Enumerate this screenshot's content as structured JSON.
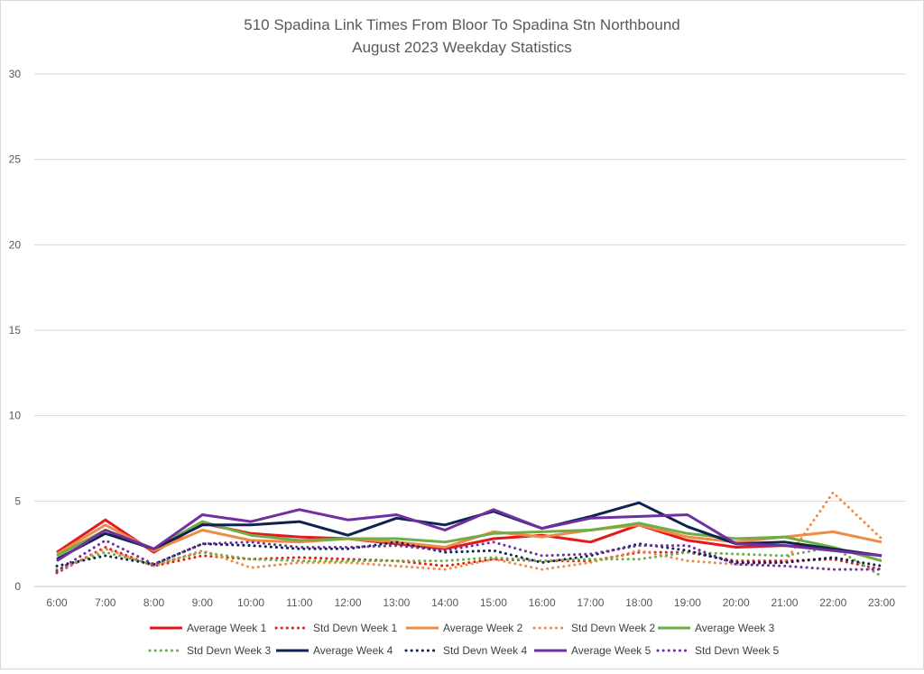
{
  "chart_data": {
    "type": "line",
    "title": "510 Spadina Link Times From Bloor To Spadina Stn Northbound",
    "subtitle": "August 2023 Weekday Statistics",
    "xlabel": "",
    "ylabel": "",
    "ylim": [
      0,
      30
    ],
    "yticks": [
      0,
      5,
      10,
      15,
      20,
      25,
      30
    ],
    "grid": true,
    "legend_position": "bottom",
    "categories": [
      "6:00",
      "7:00",
      "8:00",
      "9:00",
      "10:00",
      "11:00",
      "12:00",
      "13:00",
      "14:00",
      "15:00",
      "16:00",
      "17:00",
      "18:00",
      "19:00",
      "20:00",
      "21:00",
      "22:00",
      "23:00"
    ],
    "series": [
      {
        "name": "Average Week 1",
        "style": "solid",
        "color": "#e31a1c",
        "values": [
          2.0,
          3.9,
          2.0,
          3.7,
          3.1,
          2.9,
          2.8,
          2.5,
          2.2,
          2.8,
          3.0,
          2.6,
          3.6,
          2.7,
          2.3,
          2.4,
          2.2,
          1.8
        ]
      },
      {
        "name": "Std Devn Week 1",
        "style": "dotted",
        "color": "#e31a1c",
        "values": [
          0.8,
          2.3,
          1.2,
          1.8,
          1.6,
          1.7,
          1.6,
          1.5,
          1.2,
          1.6,
          1.5,
          1.5,
          2.0,
          2.0,
          1.5,
          1.5,
          1.6,
          1.0
        ]
      },
      {
        "name": "Average Week 2",
        "style": "solid",
        "color": "#ed8c47",
        "values": [
          1.9,
          3.6,
          2.1,
          3.3,
          2.7,
          2.6,
          2.8,
          2.6,
          2.3,
          3.2,
          2.9,
          3.3,
          3.6,
          2.9,
          2.6,
          2.9,
          3.2,
          2.6
        ]
      },
      {
        "name": "Std Devn Week 2",
        "style": "dotted",
        "color": "#ed8c47",
        "values": [
          0.9,
          2.2,
          1.2,
          2.1,
          1.1,
          1.4,
          1.4,
          1.2,
          1.0,
          1.6,
          1.0,
          1.4,
          2.1,
          1.5,
          1.3,
          1.4,
          5.5,
          2.8
        ]
      },
      {
        "name": "Average Week 3",
        "style": "solid",
        "color": "#70ad47",
        "values": [
          1.8,
          3.3,
          2.2,
          3.8,
          3.0,
          2.7,
          2.8,
          2.8,
          2.6,
          3.1,
          3.2,
          3.3,
          3.7,
          3.1,
          2.8,
          2.9,
          2.3,
          1.5
        ]
      },
      {
        "name": "Std Devn Week 3",
        "style": "dotted",
        "color": "#70ad47",
        "values": [
          1.0,
          2.0,
          1.3,
          2.0,
          1.6,
          1.5,
          1.5,
          1.5,
          1.5,
          1.7,
          1.5,
          1.6,
          1.6,
          2.0,
          1.9,
          1.8,
          2.3,
          0.6
        ]
      },
      {
        "name": "Average Week 4",
        "style": "solid",
        "color": "#0f2350",
        "values": [
          1.6,
          3.1,
          2.2,
          3.6,
          3.6,
          3.8,
          3.0,
          4.0,
          3.6,
          4.4,
          3.4,
          4.1,
          4.9,
          3.5,
          2.5,
          2.6,
          2.2,
          1.8
        ]
      },
      {
        "name": "Std Devn Week 4",
        "style": "dotted",
        "color": "#0f2350",
        "values": [
          1.2,
          1.8,
          1.3,
          2.5,
          2.4,
          2.2,
          2.2,
          2.6,
          2.0,
          2.1,
          1.4,
          1.8,
          2.5,
          2.1,
          1.4,
          1.4,
          1.7,
          1.2
        ]
      },
      {
        "name": "Average Week 5",
        "style": "solid",
        "color": "#7030a0",
        "values": [
          1.5,
          3.3,
          2.2,
          4.2,
          3.8,
          4.5,
          3.9,
          4.2,
          3.3,
          4.5,
          3.4,
          4.0,
          4.1,
          4.2,
          2.5,
          2.4,
          2.1,
          1.8
        ]
      },
      {
        "name": "Std Devn Week 5",
        "style": "dotted",
        "color": "#7030a0",
        "values": [
          0.9,
          2.7,
          1.3,
          2.5,
          2.6,
          2.3,
          2.3,
          2.4,
          2.1,
          2.6,
          1.8,
          1.9,
          2.4,
          2.4,
          1.3,
          1.2,
          1.0,
          1.0
        ]
      }
    ]
  }
}
